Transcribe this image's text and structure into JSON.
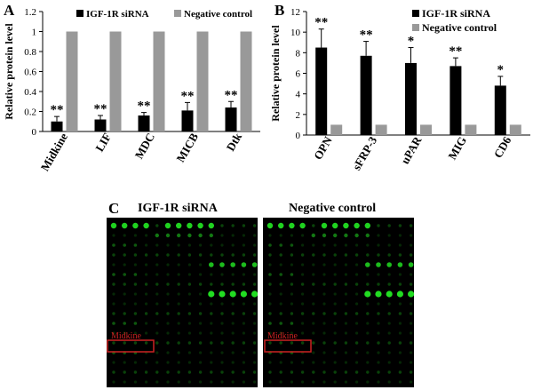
{
  "panels": {
    "a": {
      "letter": "A"
    },
    "b": {
      "letter": "B"
    },
    "c": {
      "letter": "C",
      "blots": [
        {
          "title": "IGF-1R siRNA",
          "box_label": "Midkine"
        },
        {
          "title": "Negative control",
          "box_label": "Midkine"
        }
      ]
    }
  },
  "colors": {
    "siRNA": "#000000",
    "control": "#999999",
    "blot_background": "#000000",
    "spot": "#22dd22",
    "highlight_box": "#cc2222"
  },
  "chart_data": [
    {
      "type": "bar",
      "panel": "A",
      "categories": [
        "Midkine",
        "LIF",
        "MDC",
        "MICB",
        "Dtk"
      ],
      "series": [
        {
          "name": "IGF-1R siRNA",
          "values": [
            0.1,
            0.12,
            0.16,
            0.21,
            0.24
          ],
          "errors": [
            0.05,
            0.04,
            0.03,
            0.08,
            0.06
          ]
        },
        {
          "name": "Negative control",
          "values": [
            1,
            1,
            1,
            1,
            1
          ],
          "errors": [
            0,
            0,
            0,
            0,
            0
          ]
        }
      ],
      "significance": [
        "**",
        "**",
        "**",
        "**",
        "**"
      ],
      "ylabel": "Relative protein level",
      "ylim": [
        0,
        1.2
      ],
      "yticks": [
        "0",
        "0.2",
        "0.4",
        "0.6",
        "0.8",
        "1",
        "1.2"
      ],
      "legend": "top"
    },
    {
      "type": "bar",
      "panel": "B",
      "categories": [
        "OPN",
        "sFRP-3",
        "uPAR",
        "MIG",
        "CD6"
      ],
      "series": [
        {
          "name": "IGF-1R siRNA",
          "values": [
            8.5,
            7.7,
            7.0,
            6.7,
            4.8
          ],
          "errors": [
            1.8,
            1.4,
            1.5,
            0.8,
            0.9
          ]
        },
        {
          "name": "Negative control",
          "values": [
            1,
            1,
            1,
            1,
            1
          ],
          "errors": [
            0,
            0,
            0,
            0,
            0
          ]
        }
      ],
      "significance": [
        "**",
        "**",
        "*",
        "**",
        "*"
      ],
      "ylabel": "Relative protein level",
      "ylim": [
        0,
        12
      ],
      "yticks": [
        "0",
        "2",
        "4",
        "6",
        "8",
        "10",
        "12"
      ],
      "legend": "top-right"
    }
  ]
}
